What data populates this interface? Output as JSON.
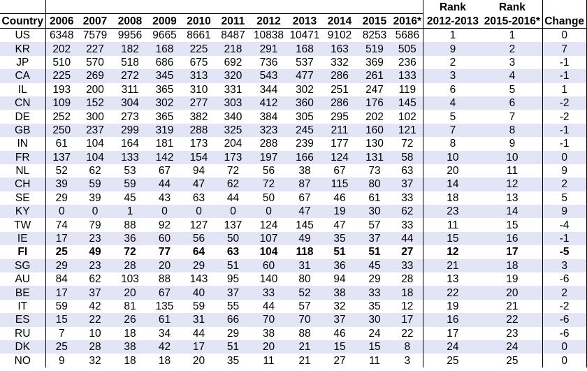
{
  "table": {
    "headers": {
      "country": "Country",
      "years": [
        "2006",
        "2007",
        "2008",
        "2009",
        "2010",
        "2011",
        "2012",
        "2013",
        "2014",
        "2015",
        "2016*"
      ],
      "rank_a_line1": "Rank",
      "rank_a_line2": "2012-2013",
      "rank_b_line1": "Rank",
      "rank_b_line2": "2015-2016*",
      "change": "Change"
    },
    "bold_country": "FI",
    "rows": [
      {
        "country": "US",
        "values": [
          "6348",
          "7579",
          "9956",
          "9665",
          "8661",
          "8487",
          "10838",
          "10471",
          "9102",
          "8253",
          "5686"
        ],
        "rank_a": "1",
        "rank_b": "1",
        "change": "0"
      },
      {
        "country": "KR",
        "values": [
          "202",
          "227",
          "182",
          "168",
          "225",
          "218",
          "291",
          "168",
          "163",
          "519",
          "505"
        ],
        "rank_a": "9",
        "rank_b": "2",
        "change": "7"
      },
      {
        "country": "JP",
        "values": [
          "510",
          "570",
          "518",
          "686",
          "675",
          "692",
          "736",
          "537",
          "332",
          "369",
          "236"
        ],
        "rank_a": "2",
        "rank_b": "3",
        "change": "-1"
      },
      {
        "country": "CA",
        "values": [
          "225",
          "269",
          "272",
          "345",
          "313",
          "320",
          "543",
          "477",
          "286",
          "261",
          "133"
        ],
        "rank_a": "3",
        "rank_b": "4",
        "change": "-1"
      },
      {
        "country": "IL",
        "values": [
          "193",
          "200",
          "311",
          "365",
          "310",
          "331",
          "344",
          "302",
          "251",
          "247",
          "119"
        ],
        "rank_a": "6",
        "rank_b": "5",
        "change": "1"
      },
      {
        "country": "CN",
        "values": [
          "109",
          "152",
          "304",
          "302",
          "277",
          "303",
          "412",
          "360",
          "286",
          "176",
          "145"
        ],
        "rank_a": "4",
        "rank_b": "6",
        "change": "-2"
      },
      {
        "country": "DE",
        "values": [
          "252",
          "300",
          "273",
          "365",
          "382",
          "340",
          "384",
          "305",
          "295",
          "202",
          "102"
        ],
        "rank_a": "5",
        "rank_b": "7",
        "change": "-2"
      },
      {
        "country": "GB",
        "values": [
          "250",
          "237",
          "299",
          "319",
          "288",
          "325",
          "323",
          "245",
          "211",
          "160",
          "121"
        ],
        "rank_a": "7",
        "rank_b": "8",
        "change": "-1"
      },
      {
        "country": "IN",
        "values": [
          "61",
          "104",
          "164",
          "181",
          "173",
          "204",
          "288",
          "239",
          "177",
          "130",
          "72"
        ],
        "rank_a": "8",
        "rank_b": "9",
        "change": "-1"
      },
      {
        "country": "FR",
        "values": [
          "137",
          "104",
          "133",
          "142",
          "154",
          "173",
          "197",
          "166",
          "124",
          "131",
          "58"
        ],
        "rank_a": "10",
        "rank_b": "10",
        "change": "0"
      },
      {
        "country": "NL",
        "values": [
          "52",
          "62",
          "53",
          "67",
          "94",
          "72",
          "56",
          "38",
          "67",
          "73",
          "63"
        ],
        "rank_a": "20",
        "rank_b": "11",
        "change": "9"
      },
      {
        "country": "CH",
        "values": [
          "39",
          "59",
          "59",
          "44",
          "47",
          "62",
          "72",
          "87",
          "115",
          "80",
          "37"
        ],
        "rank_a": "14",
        "rank_b": "12",
        "change": "2"
      },
      {
        "country": "SE",
        "values": [
          "29",
          "39",
          "45",
          "43",
          "63",
          "44",
          "50",
          "67",
          "46",
          "61",
          "33"
        ],
        "rank_a": "18",
        "rank_b": "13",
        "change": "5"
      },
      {
        "country": "KY",
        "values": [
          "0",
          "0",
          "1",
          "0",
          "0",
          "0",
          "0",
          "47",
          "19",
          "30",
          "62"
        ],
        "rank_a": "23",
        "rank_b": "14",
        "change": "9"
      },
      {
        "country": "TW",
        "values": [
          "74",
          "79",
          "88",
          "92",
          "127",
          "137",
          "124",
          "145",
          "47",
          "57",
          "33"
        ],
        "rank_a": "11",
        "rank_b": "15",
        "change": "-4"
      },
      {
        "country": "IE",
        "values": [
          "17",
          "23",
          "36",
          "60",
          "56",
          "50",
          "107",
          "49",
          "35",
          "37",
          "44"
        ],
        "rank_a": "15",
        "rank_b": "16",
        "change": "-1"
      },
      {
        "country": "FI",
        "values": [
          "25",
          "49",
          "72",
          "77",
          "64",
          "63",
          "104",
          "118",
          "51",
          "51",
          "27"
        ],
        "rank_a": "12",
        "rank_b": "17",
        "change": "-5"
      },
      {
        "country": "SG",
        "values": [
          "29",
          "23",
          "28",
          "20",
          "29",
          "51",
          "60",
          "31",
          "36",
          "45",
          "33"
        ],
        "rank_a": "21",
        "rank_b": "18",
        "change": "3"
      },
      {
        "country": "AU",
        "values": [
          "84",
          "62",
          "103",
          "88",
          "143",
          "95",
          "140",
          "80",
          "94",
          "29",
          "28"
        ],
        "rank_a": "13",
        "rank_b": "19",
        "change": "-6"
      },
      {
        "country": "BE",
        "values": [
          "17",
          "37",
          "20",
          "67",
          "40",
          "37",
          "33",
          "52",
          "38",
          "33",
          "18"
        ],
        "rank_a": "22",
        "rank_b": "20",
        "change": "2"
      },
      {
        "country": "IT",
        "values": [
          "59",
          "42",
          "81",
          "135",
          "59",
          "55",
          "44",
          "57",
          "32",
          "35",
          "12"
        ],
        "rank_a": "19",
        "rank_b": "21",
        "change": "-2"
      },
      {
        "country": "ES",
        "values": [
          "15",
          "22",
          "26",
          "61",
          "31",
          "66",
          "70",
          "70",
          "37",
          "30",
          "17"
        ],
        "rank_a": "16",
        "rank_b": "22",
        "change": "-6"
      },
      {
        "country": "RU",
        "values": [
          "7",
          "10",
          "18",
          "34",
          "44",
          "29",
          "38",
          "88",
          "46",
          "24",
          "22"
        ],
        "rank_a": "17",
        "rank_b": "23",
        "change": "-6"
      },
      {
        "country": "DK",
        "values": [
          "25",
          "28",
          "38",
          "42",
          "17",
          "51",
          "20",
          "21",
          "15",
          "15",
          "8"
        ],
        "rank_a": "24",
        "rank_b": "24",
        "change": "0"
      },
      {
        "country": "NO",
        "values": [
          "9",
          "32",
          "18",
          "18",
          "20",
          "35",
          "11",
          "21",
          "27",
          "11",
          "3"
        ],
        "rank_a": "25",
        "rank_b": "25",
        "change": "0"
      }
    ]
  }
}
